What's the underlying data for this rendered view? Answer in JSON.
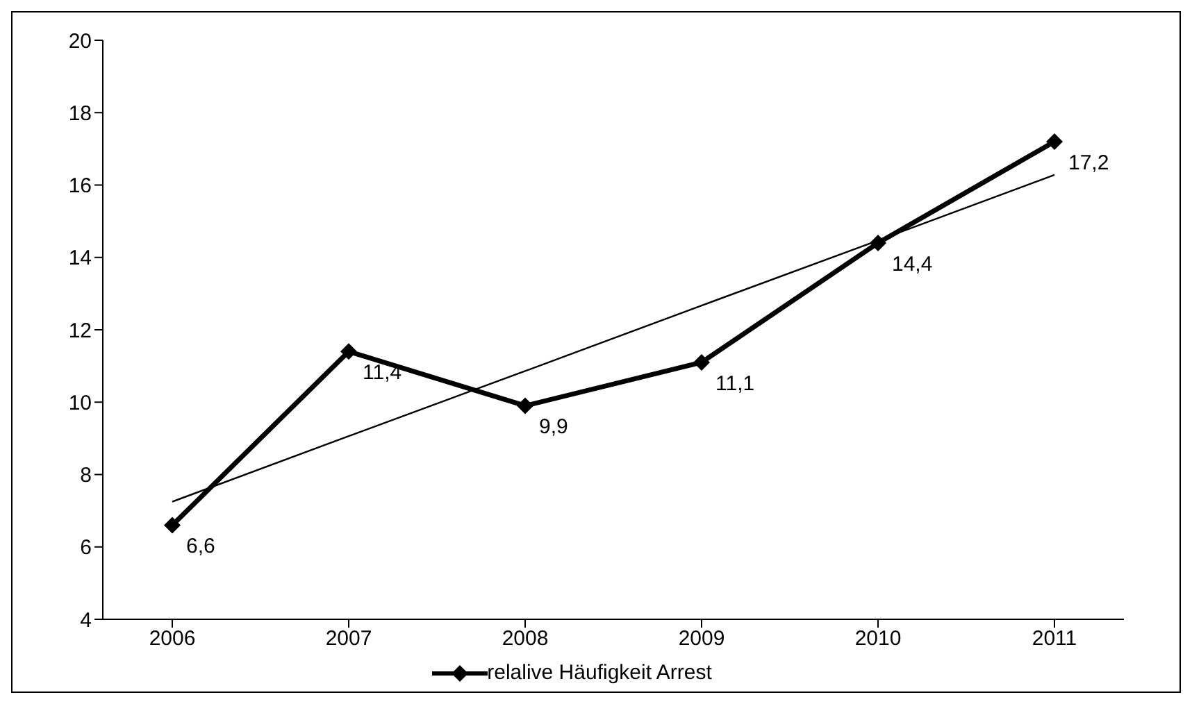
{
  "chart_data": {
    "type": "line",
    "categories": [
      "2006",
      "2007",
      "2008",
      "2009",
      "2010",
      "2011"
    ],
    "series": [
      {
        "name": "relalive Häufigkeit Arrest",
        "color": "#000000",
        "values": [
          6.6,
          11.4,
          9.9,
          11.1,
          14.4,
          17.2
        ],
        "value_labels": [
          "6,6",
          "11,4",
          "9,9",
          "11,1",
          "14,4",
          "17,2"
        ],
        "marker": "diamond",
        "line_style": "solid"
      },
      {
        "type": "line",
        "color": "#000000",
        "values": [
          7.25,
          9.06,
          10.86,
          12.67,
          14.47,
          16.28
        ],
        "marker": "none",
        "line_style": "solid"
      }
    ],
    "ylim": [
      4,
      20
    ],
    "yticks": [
      4,
      6,
      8,
      10,
      12,
      14,
      16,
      18,
      20
    ],
    "grid": false,
    "legend": "bottom"
  }
}
